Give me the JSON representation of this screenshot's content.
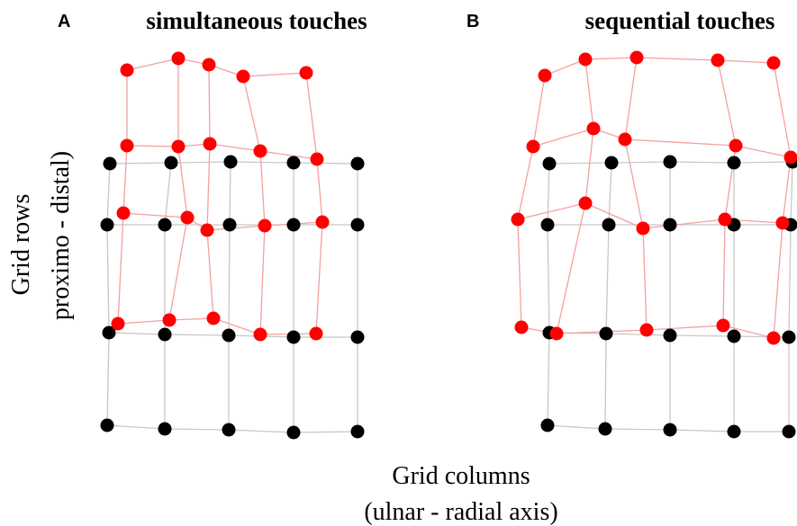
{
  "panels": [
    {
      "letter": "A",
      "title": "simultaneous touches"
    },
    {
      "letter": "B",
      "title": "sequential touches"
    }
  ],
  "y_label": {
    "line1": "Grid rows",
    "line2": "proximo - distal)"
  },
  "x_label": {
    "line1": "Grid columns",
    "line2": "(ulnar - radial axis)"
  }
}
